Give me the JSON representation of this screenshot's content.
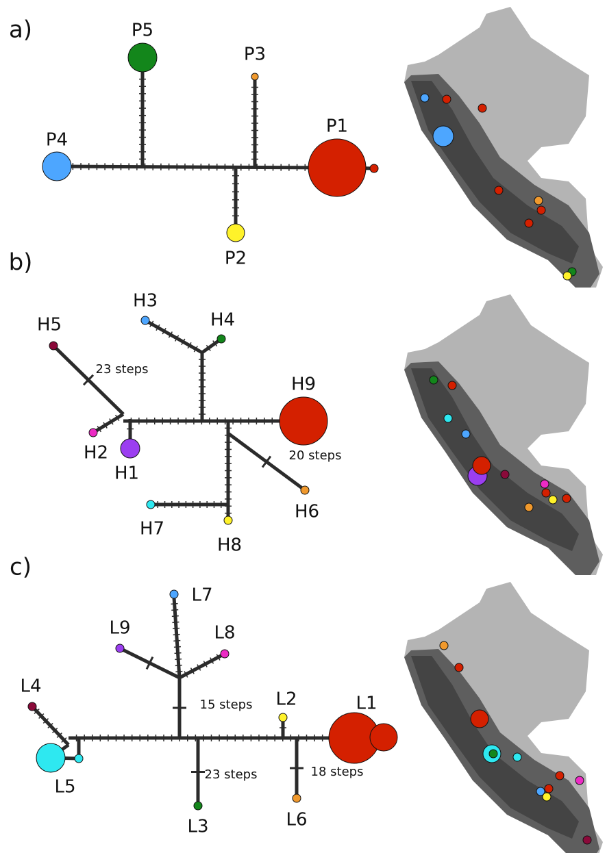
{
  "panels": [
    {
      "label": "a)",
      "nodes": [
        "P1",
        "P2",
        "P3",
        "P4",
        "P5"
      ]
    },
    {
      "label": "b)",
      "nodes": [
        "H1",
        "H2",
        "H3",
        "H4",
        "H5",
        "H6",
        "H7",
        "H8",
        "H9"
      ],
      "annotations": [
        "23 steps",
        "20 steps"
      ]
    },
    {
      "label": "c)",
      "nodes": [
        "L1",
        "L2",
        "L3",
        "L4",
        "L5",
        "L6",
        "L7",
        "L8",
        "L9"
      ],
      "annotations": [
        "15 steps",
        "23 steps",
        "18 steps"
      ]
    }
  ]
}
